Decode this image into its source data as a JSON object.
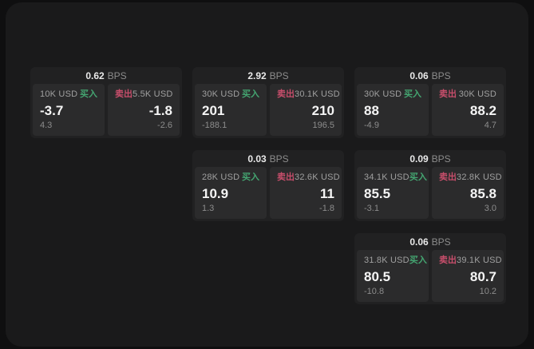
{
  "labels": {
    "bps": "BPS",
    "buy": "买入",
    "sell": "卖出"
  },
  "colors": {
    "buy": "#44a571",
    "sell": "#c74e6b",
    "value_text": "#f5f5f5",
    "muted_text": "#8c8c8c",
    "panel_bg": "#2b2b2c",
    "card_bg": "#212122",
    "stage_bg": "#1a1a1b"
  },
  "cards": [
    {
      "bps": "0.62",
      "buy": {
        "amount": "10K USD",
        "value": "-3.7",
        "sub": "4.3"
      },
      "sell": {
        "amount": "5.5K USD",
        "value": "-1.8",
        "sub": "-2.6"
      }
    },
    {
      "bps": "2.92",
      "buy": {
        "amount": "30K USD",
        "value": "201",
        "sub": "-188.1"
      },
      "sell": {
        "amount": "30.1K USD",
        "value": "210",
        "sub": "196.5"
      }
    },
    {
      "bps": "0.06",
      "buy": {
        "amount": "30K USD",
        "value": "88",
        "sub": "-4.9"
      },
      "sell": {
        "amount": "30K USD",
        "value": "88.2",
        "sub": "4.7"
      }
    },
    {
      "bps": "0.03",
      "buy": {
        "amount": "28K USD",
        "value": "10.9",
        "sub": "1.3"
      },
      "sell": {
        "amount": "32.6K USD",
        "value": "11",
        "sub": "-1.8"
      }
    },
    {
      "bps": "0.09",
      "buy": {
        "amount": "34.1K USD",
        "value": "85.5",
        "sub": "-3.1"
      },
      "sell": {
        "amount": "32.8K USD",
        "value": "85.8",
        "sub": "3.0"
      }
    },
    {
      "bps": "0.06",
      "buy": {
        "amount": "31.8K USD",
        "value": "80.5",
        "sub": "-10.8"
      },
      "sell": {
        "amount": "39.1K USD",
        "value": "80.7",
        "sub": "10.2"
      }
    }
  ]
}
